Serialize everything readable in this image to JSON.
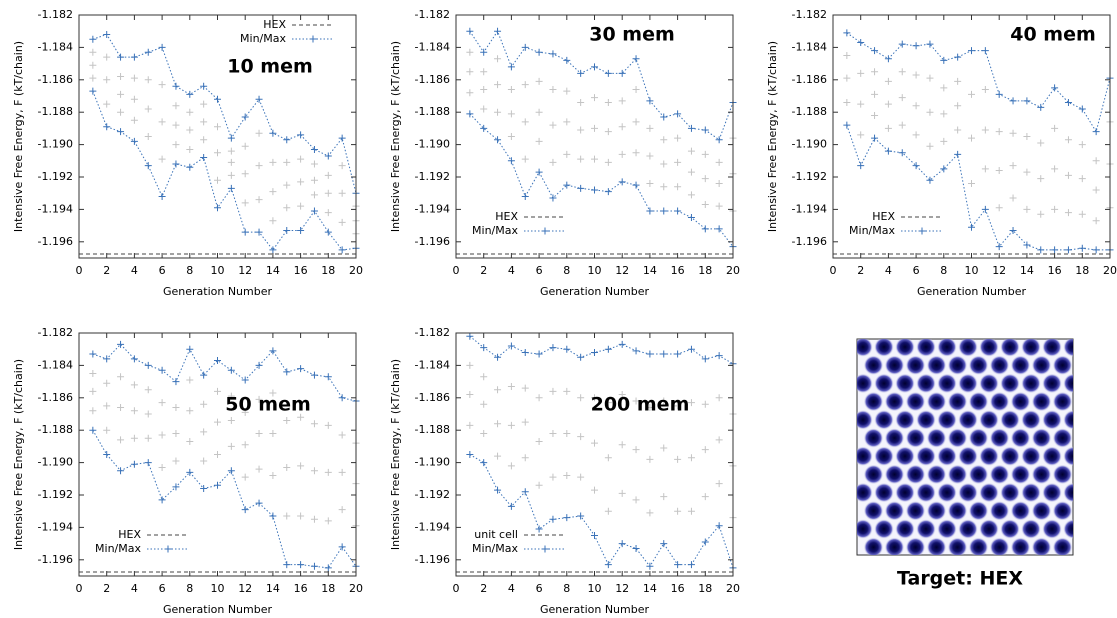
{
  "chart_data": [
    {
      "type": "line",
      "annotation": "10 mem",
      "xlabel": "Generation Number",
      "ylabel": "Intensive Free Energy, F (kT/chain)",
      "x": [
        1,
        2,
        3,
        4,
        5,
        6,
        7,
        8,
        9,
        10,
        11,
        12,
        13,
        14,
        15,
        16,
        17,
        18,
        19,
        20
      ],
      "xlim": [
        0,
        20
      ],
      "xticks": [
        0,
        2,
        4,
        6,
        8,
        10,
        12,
        14,
        16,
        18,
        20
      ],
      "ylim": [
        -1.197,
        -1.182
      ],
      "yticks": [
        -1.182,
        -1.184,
        -1.186,
        -1.188,
        {
          "value": -1.19,
          "label": "-1.190"
        },
        -1.192,
        -1.194,
        -1.196
      ],
      "legend": "upper right",
      "reference": {
        "name": "HEX",
        "value": -1.19675,
        "color": "#444444"
      },
      "series": [
        {
          "name": "Min/Max",
          "color": "#3a72b8",
          "max": [
            -1.1835,
            -1.1832,
            -1.1846,
            -1.1846,
            -1.1843,
            -1.184,
            -1.1864,
            -1.1869,
            -1.1864,
            -1.1872,
            -1.1896,
            -1.1883,
            -1.1872,
            -1.1893,
            -1.1897,
            -1.1894,
            -1.1903,
            -1.1907,
            -1.1896,
            -1.193
          ],
          "min": [
            -1.1867,
            -1.1889,
            -1.1892,
            -1.1898,
            -1.1913,
            -1.1932,
            -1.1912,
            -1.1914,
            -1.1908,
            -1.1939,
            -1.1927,
            -1.1954,
            -1.1954,
            -1.1965,
            -1.1953,
            -1.1953,
            -1.1941,
            -1.1954,
            -1.1965,
            -1.1964
          ]
        }
      ],
      "population": {
        "color": "#c4c4c4",
        "values": [
          [
            -1.1843,
            -1.1851,
            -1.1859
          ],
          [
            -1.1846,
            -1.186,
            -1.1875
          ],
          [
            -1.1858,
            -1.1869,
            -1.188
          ],
          [
            -1.1859,
            -1.1872,
            -1.1885
          ],
          [
            -1.186,
            -1.1878,
            -1.1895
          ],
          [
            -1.1863,
            -1.1886,
            -1.1909
          ],
          [
            -1.1876,
            -1.1888,
            -1.19
          ],
          [
            -1.188,
            -1.1891,
            -1.1903
          ],
          [
            -1.1875,
            -1.1886,
            -1.1897
          ],
          [
            -1.1889,
            -1.1905,
            -1.1922
          ],
          [
            -1.1904,
            -1.1911,
            -1.1919
          ],
          [
            -1.1901,
            -1.1918,
            -1.1936
          ],
          [
            -1.1893,
            -1.1913,
            -1.1934
          ],
          [
            -1.1911,
            -1.1929,
            -1.1947
          ],
          [
            -1.1911,
            -1.1925,
            -1.1939
          ],
          [
            -1.1909,
            -1.1923,
            -1.1938
          ],
          [
            -1.1912,
            -1.1922,
            -1.1931
          ],
          [
            -1.1919,
            -1.193,
            -1.1942
          ],
          [
            -1.1913,
            -1.193,
            -1.1948
          ],
          [
            -1.1938,
            -1.1947,
            -1.1955
          ]
        ]
      }
    },
    {
      "type": "line",
      "annotation": "30 mem",
      "xlabel": "Generation Number",
      "ylabel": "Intensive Free Energy, F (kT/chain)",
      "x": [
        1,
        2,
        3,
        4,
        5,
        6,
        7,
        8,
        9,
        10,
        11,
        12,
        13,
        14,
        15,
        16,
        17,
        18,
        19,
        20
      ],
      "xlim": [
        0,
        20
      ],
      "xticks": [
        0,
        2,
        4,
        6,
        8,
        10,
        12,
        14,
        16,
        18,
        20
      ],
      "ylim": [
        -1.197,
        -1.182
      ],
      "yticks": [
        -1.182,
        -1.184,
        -1.186,
        -1.188,
        {
          "value": -1.19,
          "label": "-1.190"
        },
        -1.192,
        -1.194,
        -1.196
      ],
      "legend": "lower left",
      "reference": {
        "name": "HEX",
        "value": -1.19675,
        "color": "#444444"
      },
      "series": [
        {
          "name": "Min/Max",
          "color": "#3a72b8",
          "max": [
            -1.183,
            -1.1843,
            -1.183,
            -1.1852,
            -1.184,
            -1.1843,
            -1.1844,
            -1.1848,
            -1.1856,
            -1.1852,
            -1.1856,
            -1.1856,
            -1.1847,
            -1.1873,
            -1.1883,
            -1.1881,
            -1.189,
            -1.1891,
            -1.1897,
            -1.1874
          ],
          "min": [
            -1.1881,
            -1.189,
            -1.1897,
            -1.191,
            -1.1932,
            -1.1917,
            -1.1933,
            -1.1925,
            -1.1927,
            -1.1928,
            -1.1929,
            -1.1923,
            -1.1925,
            -1.1941,
            -1.1941,
            -1.1941,
            -1.1945,
            -1.1952,
            -1.1952,
            -1.1963
          ]
        }
      ],
      "population": {
        "color": "#c4c4c4",
        "values": [
          [
            -1.1843,
            -1.1855,
            -1.1868
          ],
          [
            -1.1855,
            -1.1866,
            -1.1878
          ],
          [
            -1.1847,
            -1.1863,
            -1.188
          ],
          [
            -1.1866,
            -1.1881,
            -1.1895
          ],
          [
            -1.1863,
            -1.1886,
            -1.1909
          ],
          [
            -1.1861,
            -1.188,
            -1.1898
          ],
          [
            -1.1866,
            -1.1888,
            -1.1911
          ],
          [
            -1.1867,
            -1.1886,
            -1.1906
          ],
          [
            -1.1874,
            -1.1891,
            -1.1909
          ],
          [
            -1.1871,
            -1.189,
            -1.1909
          ],
          [
            -1.1874,
            -1.1892,
            -1.1911
          ],
          [
            -1.1873,
            -1.1889,
            -1.1906
          ],
          [
            -1.1866,
            -1.1886,
            -1.1905
          ],
          [
            -1.189,
            -1.1907,
            -1.1924
          ],
          [
            -1.1897,
            -1.1912,
            -1.1926
          ],
          [
            -1.1896,
            -1.1911,
            -1.1926
          ],
          [
            -1.1904,
            -1.1917,
            -1.1931
          ],
          [
            -1.1906,
            -1.1921,
            -1.1937
          ],
          [
            -1.1911,
            -1.1924,
            -1.1938
          ],
          [
            -1.1896,
            -1.1918,
            -1.1941
          ]
        ]
      }
    },
    {
      "type": "line",
      "annotation": "40 mem",
      "xlabel": "Generation Number",
      "ylabel": "Intensive Free Energy, F (kT/chain)",
      "x": [
        1,
        2,
        3,
        4,
        5,
        6,
        7,
        8,
        9,
        10,
        11,
        12,
        13,
        14,
        15,
        16,
        17,
        18,
        19,
        20
      ],
      "xlim": [
        0,
        20
      ],
      "xticks": [
        0,
        2,
        4,
        6,
        8,
        10,
        12,
        14,
        16,
        18,
        20
      ],
      "ylim": [
        -1.197,
        -1.182
      ],
      "yticks": [
        -1.182,
        -1.184,
        -1.186,
        -1.188,
        {
          "value": -1.19,
          "label": "-1.190"
        },
        -1.192,
        -1.194,
        -1.196
      ],
      "legend": "lower left",
      "reference": {
        "name": "HEX",
        "value": -1.19675,
        "color": "#444444"
      },
      "series": [
        {
          "name": "Min/Max",
          "color": "#3a72b8",
          "max": [
            -1.1831,
            -1.1837,
            -1.1842,
            -1.1847,
            -1.1838,
            -1.1839,
            -1.1838,
            -1.1848,
            -1.1846,
            -1.1842,
            -1.1842,
            -1.1869,
            -1.1873,
            -1.1873,
            -1.1877,
            -1.1865,
            -1.1874,
            -1.1878,
            -1.1892,
            -1.1859
          ],
          "min": [
            -1.1888,
            -1.1913,
            -1.1896,
            -1.1904,
            -1.1905,
            -1.1913,
            -1.1922,
            -1.1915,
            -1.1906,
            -1.1951,
            -1.194,
            -1.1963,
            -1.1953,
            -1.1962,
            -1.1965,
            -1.1965,
            -1.1965,
            -1.1964,
            -1.1965,
            -1.1965
          ]
        }
      ],
      "population": {
        "color": "#c4c4c4",
        "values": [
          [
            -1.1845,
            -1.1859,
            -1.1874
          ],
          [
            -1.1856,
            -1.1875,
            -1.1894
          ],
          [
            -1.1855,
            -1.1869,
            -1.1882
          ],
          [
            -1.1861,
            -1.1875,
            -1.189
          ],
          [
            -1.1855,
            -1.1871,
            -1.1888
          ],
          [
            -1.1857,
            -1.1876,
            -1.1894
          ],
          [
            -1.1859,
            -1.188,
            -1.1901
          ],
          [
            -1.1865,
            -1.1881,
            -1.1898
          ],
          [
            -1.1861,
            -1.1876,
            -1.1891
          ],
          [
            -1.1869,
            -1.1896,
            -1.1924
          ],
          [
            -1.1866,
            -1.1891,
            -1.1915
          ],
          [
            -1.1892,
            -1.1916,
            -1.1939
          ],
          [
            -1.1893,
            -1.1913,
            -1.1933
          ],
          [
            -1.1895,
            -1.1917,
            -1.194
          ],
          [
            -1.1899,
            -1.1921,
            -1.1943
          ],
          [
            -1.189,
            -1.1915,
            -1.194
          ],
          [
            -1.1897,
            -1.1919,
            -1.1942
          ],
          [
            -1.19,
            -1.1921,
            -1.1943
          ],
          [
            -1.191,
            -1.1928,
            -1.1947
          ],
          [
            -1.1886,
            -1.1912,
            -1.1939
          ]
        ]
      }
    },
    {
      "type": "line",
      "annotation": "50 mem",
      "xlabel": "Generation Number",
      "ylabel": "Intensive Free Energy, F (kT/chain)",
      "x": [
        1,
        2,
        3,
        4,
        5,
        6,
        7,
        8,
        9,
        10,
        11,
        12,
        13,
        14,
        15,
        16,
        17,
        18,
        19,
        20
      ],
      "xlim": [
        0,
        20
      ],
      "xticks": [
        0,
        2,
        4,
        6,
        8,
        10,
        12,
        14,
        16,
        18,
        20
      ],
      "ylim": [
        -1.197,
        -1.182
      ],
      "yticks": [
        -1.182,
        -1.184,
        -1.186,
        -1.188,
        {
          "value": -1.19,
          "label": "-1.190"
        },
        -1.192,
        -1.194,
        -1.196
      ],
      "legend": "lower left",
      "reference": {
        "name": "HEX",
        "value": -1.19675,
        "color": "#444444"
      },
      "series": [
        {
          "name": "Min/Max",
          "color": "#3a72b8",
          "max": [
            -1.1833,
            -1.1836,
            -1.1827,
            -1.1836,
            -1.184,
            -1.1843,
            -1.185,
            -1.183,
            -1.1846,
            -1.1837,
            -1.1843,
            -1.1849,
            -1.184,
            -1.1831,
            -1.1844,
            -1.1842,
            -1.1846,
            -1.1847,
            -1.186,
            -1.1862
          ],
          "min": [
            -1.188,
            -1.1895,
            -1.1905,
            -1.1901,
            -1.19,
            -1.1923,
            -1.1915,
            -1.1906,
            -1.1916,
            -1.1914,
            -1.1905,
            -1.1929,
            -1.1925,
            -1.1933,
            -1.1963,
            -1.1963,
            -1.1964,
            -1.1965,
            -1.1952,
            -1.1964
          ]
        }
      ],
      "population": {
        "color": "#c4c4c4",
        "values": [
          [
            -1.1845,
            -1.1856,
            -1.1868
          ],
          [
            -1.1851,
            -1.1865,
            -1.188
          ],
          [
            -1.1847,
            -1.1866,
            -1.1886
          ],
          [
            -1.1852,
            -1.1868,
            -1.1885
          ],
          [
            -1.1855,
            -1.187,
            -1.1885
          ],
          [
            -1.1863,
            -1.1883,
            -1.1903
          ],
          [
            -1.1866,
            -1.1882,
            -1.1899
          ],
          [
            -1.1849,
            -1.1868,
            -1.1887
          ],
          [
            -1.1864,
            -1.1881,
            -1.1899
          ],
          [
            -1.1856,
            -1.1875,
            -1.1895
          ],
          [
            -1.1859,
            -1.1874,
            -1.189
          ],
          [
            -1.1869,
            -1.1889,
            -1.1909
          ],
          [
            -1.1861,
            -1.1882,
            -1.1904
          ],
          [
            -1.1857,
            -1.1882,
            -1.1908
          ],
          [
            -1.1874,
            -1.1903,
            -1.1933
          ],
          [
            -1.1872,
            -1.1902,
            -1.1933
          ],
          [
            -1.1876,
            -1.1905,
            -1.1935
          ],
          [
            -1.1877,
            -1.1906,
            -1.1936
          ],
          [
            -1.1883,
            -1.1906,
            -1.1929
          ],
          [
            -1.1888,
            -1.1913,
            -1.1939
          ]
        ]
      }
    },
    {
      "type": "line",
      "annotation": "200 mem",
      "xlabel": "Generation Number",
      "ylabel": "Intensive Free Energy, F (kT/chain)",
      "x": [
        1,
        2,
        3,
        4,
        5,
        6,
        7,
        8,
        9,
        10,
        11,
        12,
        13,
        14,
        15,
        16,
        17,
        18,
        19,
        20
      ],
      "xlim": [
        0,
        20
      ],
      "xticks": [
        0,
        2,
        4,
        6,
        8,
        10,
        12,
        14,
        16,
        18,
        20
      ],
      "ylim": [
        -1.197,
        -1.182
      ],
      "yticks": [
        -1.182,
        -1.184,
        -1.186,
        -1.188,
        {
          "value": -1.19,
          "label": "-1.190"
        },
        -1.192,
        -1.194,
        -1.196
      ],
      "legend": "lower left",
      "reference": {
        "name": "unit cell",
        "value": -1.19675,
        "color": "#444444"
      },
      "series": [
        {
          "name": "Min/Max",
          "color": "#3a72b8",
          "max": [
            -1.1822,
            -1.1829,
            -1.1835,
            -1.1828,
            -1.1832,
            -1.1833,
            -1.1829,
            -1.183,
            -1.1835,
            -1.1832,
            -1.183,
            -1.1827,
            -1.1831,
            -1.1833,
            -1.1833,
            -1.1833,
            -1.183,
            -1.1836,
            -1.1834,
            -1.1839
          ],
          "min": [
            -1.1895,
            -1.19,
            -1.1917,
            -1.1927,
            -1.1918,
            -1.1941,
            -1.1935,
            -1.1934,
            -1.1933,
            -1.1945,
            -1.1963,
            -1.195,
            -1.1953,
            -1.1964,
            -1.195,
            -1.1963,
            -1.1963,
            -1.1949,
            -1.1939,
            -1.1965
          ]
        }
      ],
      "population": {
        "color": "#c4c4c4",
        "values": [
          [
            -1.184,
            -1.1858,
            -1.1877
          ],
          [
            -1.1847,
            -1.1864,
            -1.1882
          ],
          [
            -1.1855,
            -1.1876,
            -1.1896
          ],
          [
            -1.1853,
            -1.1877,
            -1.1902
          ],
          [
            -1.1854,
            -1.1875,
            -1.1897
          ],
          [
            -1.186,
            -1.1887,
            -1.1914
          ],
          [
            -1.1856,
            -1.1882,
            -1.1909
          ],
          [
            -1.1856,
            -1.1882,
            -1.1908
          ],
          [
            -1.186,
            -1.1884,
            -1.1909
          ],
          [
            -1.186,
            -1.1888,
            -1.1917
          ],
          [
            -1.1863,
            -1.1897,
            -1.193
          ],
          [
            -1.1858,
            -1.1889,
            -1.1919
          ],
          [
            -1.1862,
            -1.1892,
            -1.1923
          ],
          [
            -1.1866,
            -1.1898,
            -1.1931
          ],
          [
            -1.1862,
            -1.1891,
            -1.1921
          ],
          [
            -1.1865,
            -1.1898,
            -1.193
          ],
          [
            -1.1863,
            -1.1897,
            -1.193
          ],
          [
            -1.1864,
            -1.1892,
            -1.1921
          ],
          [
            -1.186,
            -1.1886,
            -1.1913
          ],
          [
            -1.187,
            -1.1902,
            -1.1934
          ]
        ]
      }
    }
  ],
  "image_caption": "Target: HEX"
}
